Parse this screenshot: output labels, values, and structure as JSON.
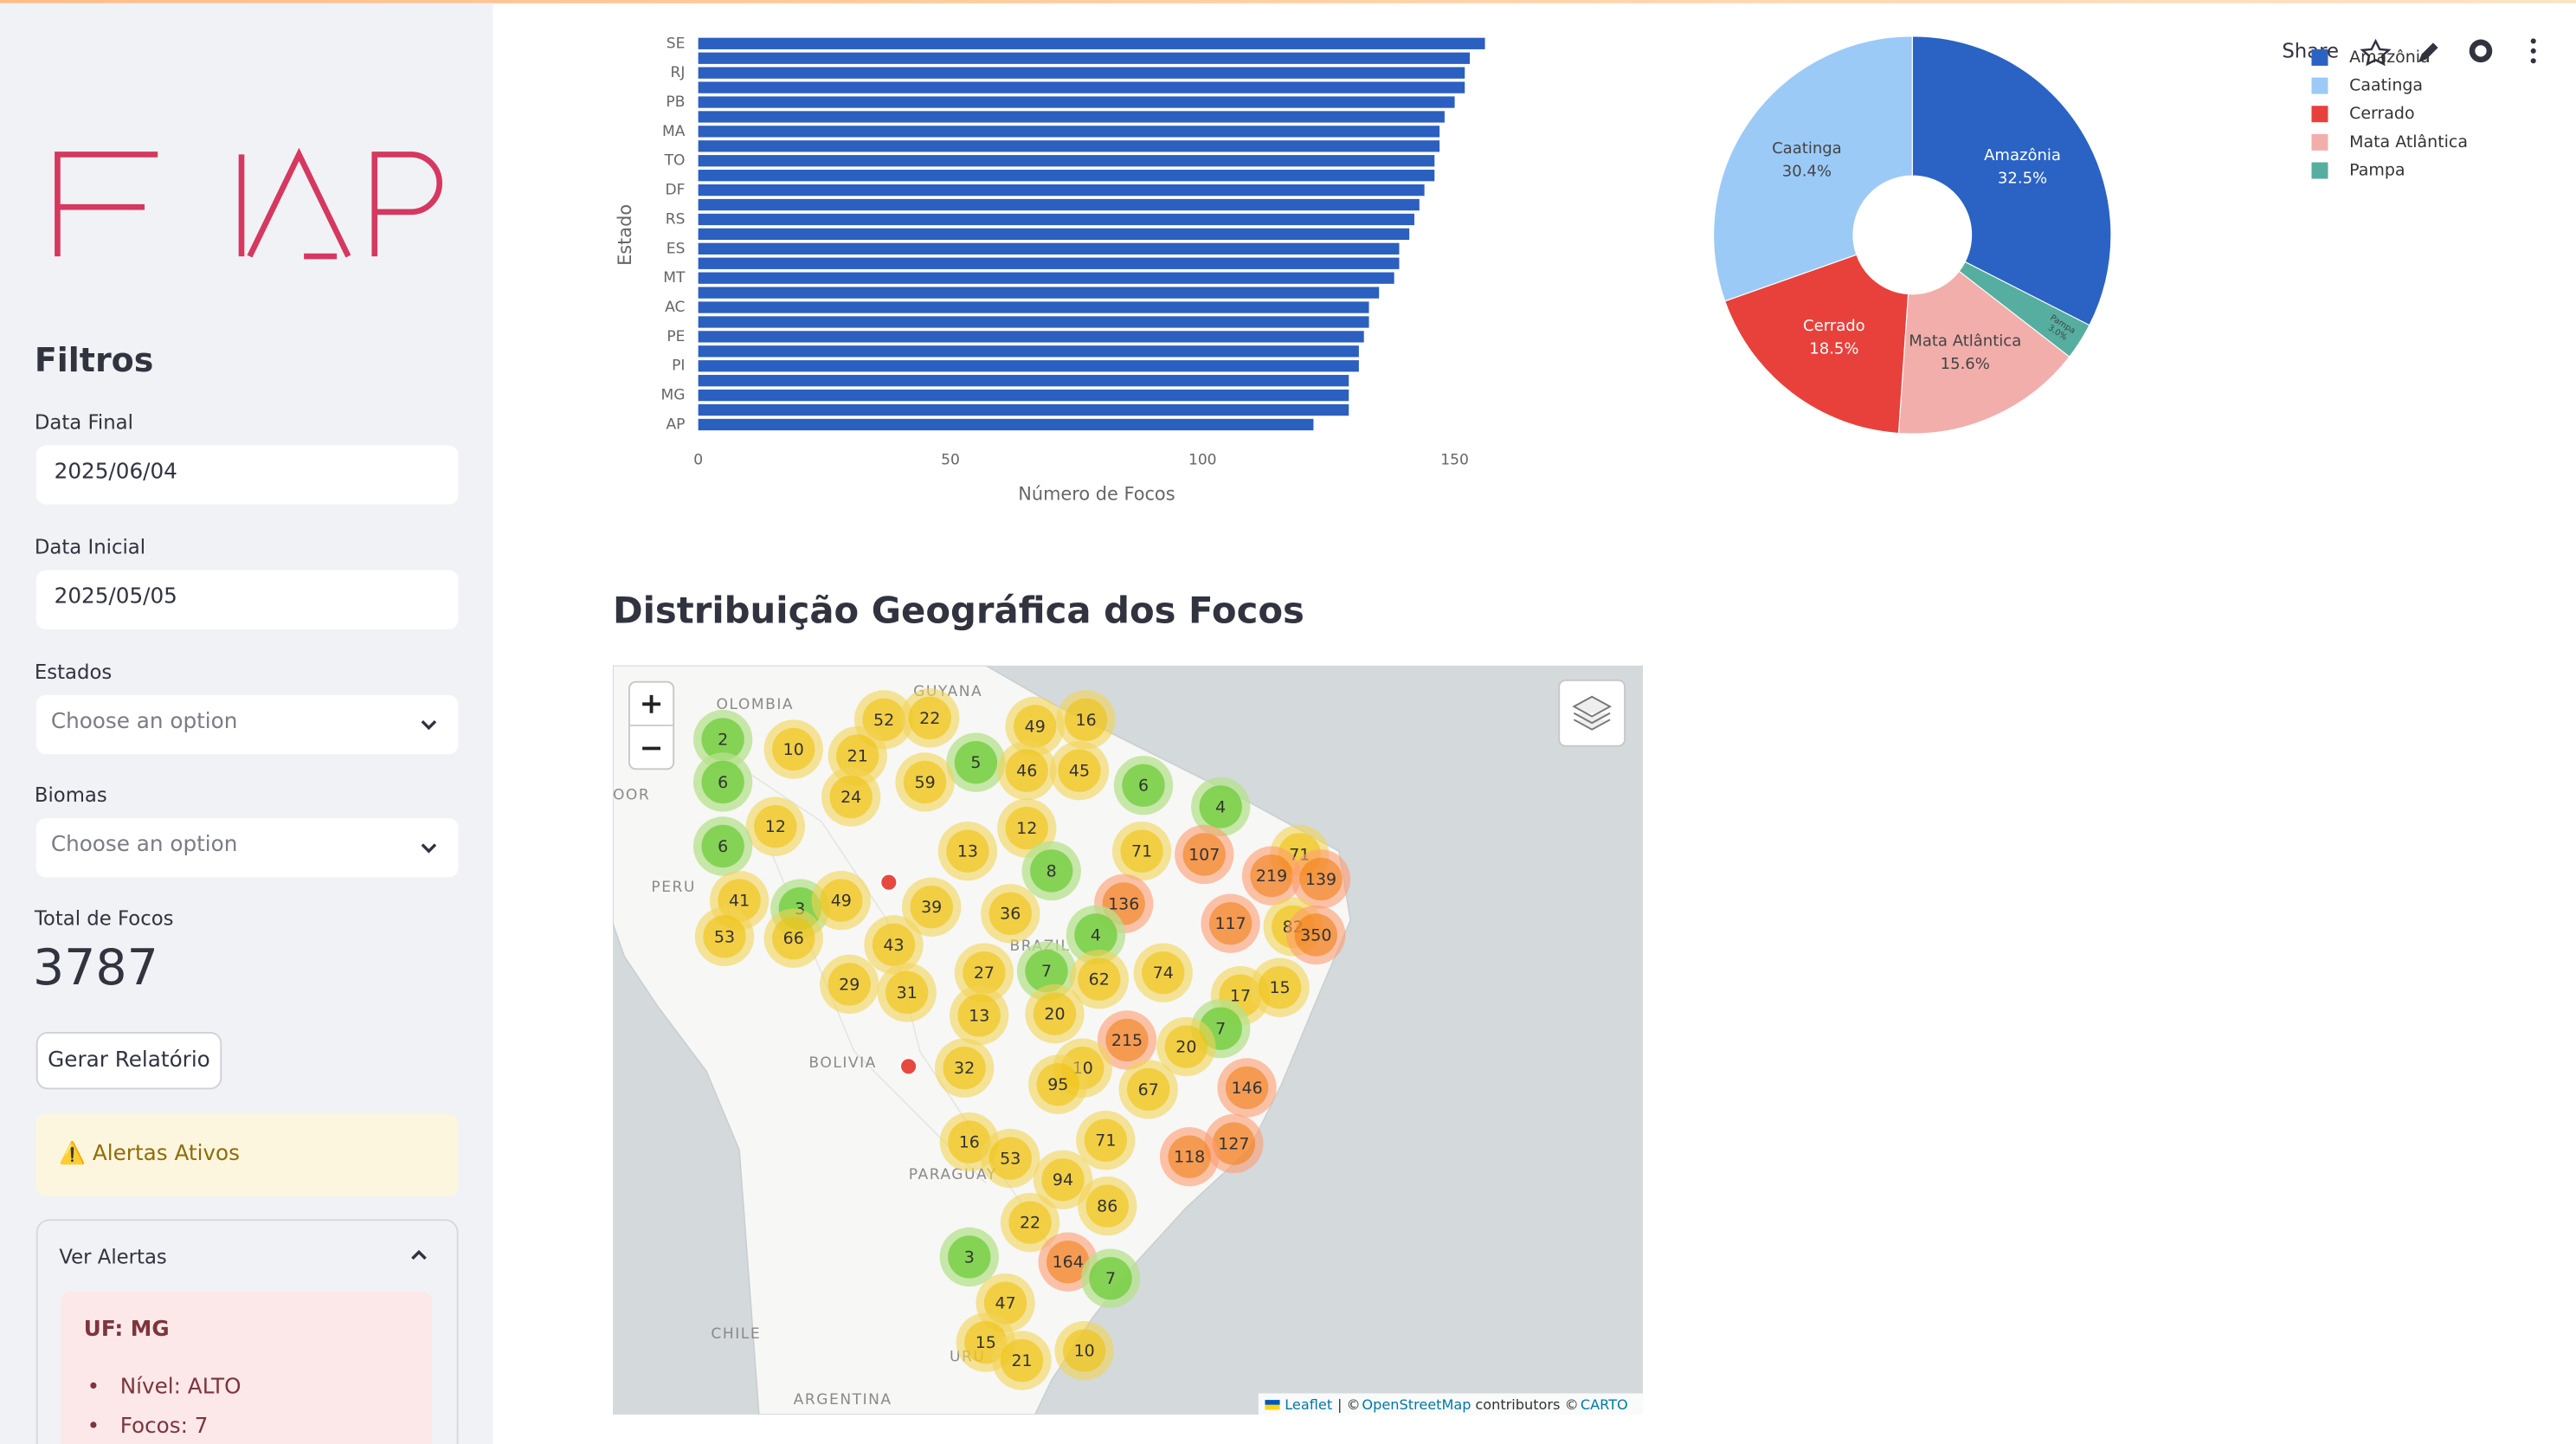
{
  "header": {
    "share": "Share"
  },
  "sidebar": {
    "title": "Filtros",
    "fields": [
      {
        "label": "Data Final",
        "value": "2025/06/04"
      },
      {
        "label": "Data Inicial",
        "value": "2025/05/05"
      },
      {
        "label": "Estados",
        "placeholder": "Choose an option"
      },
      {
        "label": "Biomas",
        "placeholder": "Choose an option"
      }
    ],
    "metric": {
      "label": "Total de Focos",
      "value": 3787
    },
    "button": "Gerar Relatório",
    "alert": "⚠️ Alertas Ativos",
    "expander": {
      "title": "Ver Alertas",
      "items": [
        {
          "uf": "UF: MG",
          "lines": [
            "Nível: ALTO",
            "Focos: 7"
          ]
        }
      ]
    }
  },
  "chart_data": [
    {
      "type": "bar",
      "orientation": "horizontal",
      "x_label": "Número de Focos",
      "y_label": "Estado",
      "categories": [
        "SE",
        null,
        "RJ",
        null,
        "PB",
        null,
        "MA",
        null,
        "TO",
        null,
        "DF",
        null,
        "RS",
        null,
        "ES",
        null,
        "MT",
        null,
        "AC",
        null,
        "PE",
        null,
        "PI",
        null,
        "MG",
        null,
        "AP"
      ],
      "values": [
        156,
        153,
        152,
        152,
        150,
        148,
        147,
        147,
        146,
        146,
        144,
        143,
        142,
        141,
        139,
        139,
        138,
        135,
        133,
        133,
        132,
        131,
        131,
        129,
        129,
        129,
        122
      ],
      "color": "#2b5fc0",
      "xlim": [
        0,
        158
      ],
      "xticks": [
        0,
        50,
        100,
        150
      ],
      "grid": false
    },
    {
      "type": "pie",
      "labels": [
        "Amazônia",
        "Caatinga",
        "Cerrado",
        "Mata Atlântica",
        "Pampa"
      ],
      "values": [
        32.5,
        30.4,
        18.5,
        15.6,
        3.0
      ],
      "value_labels": [
        "32.5%",
        "30.4%",
        "18.5%",
        "15.6%",
        "3.0%"
      ],
      "colors": [
        "#2a63c4",
        "#9ccaf7",
        "#e8413b",
        "#f2aeab",
        "#55aea0"
      ],
      "legend": "top-right"
    }
  ],
  "map": {
    "title": "Distribuição Geográfica dos Focos",
    "place_labels": [
      "OLOMBIA",
      "GUYANA",
      "OOR",
      "PERU",
      "BRAZIL",
      "BOLIVIA",
      "PARAGUAY",
      "CHILE",
      "ARGENTINA",
      "URU"
    ],
    "clusters": [
      2,
      10,
      52,
      22,
      49,
      16,
      21,
      5,
      46,
      45,
      6,
      59,
      6,
      24,
      4,
      12,
      12,
      6,
      13,
      71,
      107,
      71,
      8,
      219,
      139,
      41,
      3,
      49,
      39,
      36,
      136,
      117,
      82,
      350,
      53,
      66,
      4,
      43,
      27,
      7,
      62,
      74,
      29,
      31,
      17,
      15,
      13,
      20,
      7,
      215,
      20,
      10,
      32,
      95,
      67,
      146,
      71,
      16,
      127,
      53,
      118,
      94,
      86,
      22,
      3,
      164,
      7,
      47,
      15,
      10,
      21
    ],
    "attribution": {
      "leaflet": "Leaflet",
      "sep": "| © ",
      "osm": "OpenStreetMap",
      "mid": "contributors ©",
      "carto": "CARTO"
    }
  }
}
